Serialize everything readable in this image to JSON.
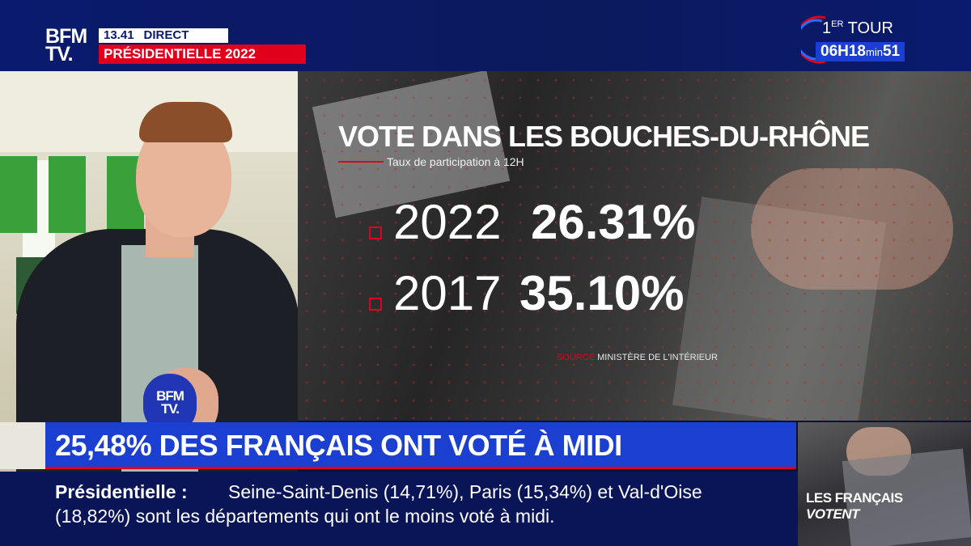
{
  "header": {
    "logo_line1": "BFM",
    "logo_line2": "TV.",
    "time": "13.41",
    "live_label": "DIRECT",
    "event": "PRÉSIDENTIELLE 2022",
    "tour_number": "1",
    "tour_suffix": "ER",
    "tour_label": "TOUR",
    "countdown_hours": "06H",
    "countdown_value": "18",
    "countdown_unit": "min",
    "countdown_seconds": "51"
  },
  "mic_logo": {
    "line1": "BFM",
    "line2": "TV."
  },
  "graphic": {
    "title": "VOTE DANS LES BOUCHES-DU-RHÔNE",
    "subtitle": "Taux de participation à 12H",
    "rows": [
      {
        "year": "2022",
        "value": "26.31%"
      },
      {
        "year": "2017",
        "value": "35.10%"
      }
    ],
    "source_label": "SOURCE",
    "source": "MINISTÈRE DE L'INTÉRIEUR"
  },
  "headline": "25,48% DES FRANÇAIS ONT VOTÉ À MIDI",
  "ticker": {
    "lead": "Présidentielle :",
    "line1": "Seine-Saint-Denis (14,71%), Paris (15,34%) et Val-d'Oise",
    "line2": "(18,82%) sont les départements qui ont le moins voté à midi."
  },
  "thumbnail": {
    "line1": "LES FRANÇAIS",
    "line2": "VOTENT"
  },
  "colors": {
    "bfm_blue": "#1b3fd0",
    "bfm_red": "#e1001b",
    "dark_navy": "#0a1558"
  }
}
